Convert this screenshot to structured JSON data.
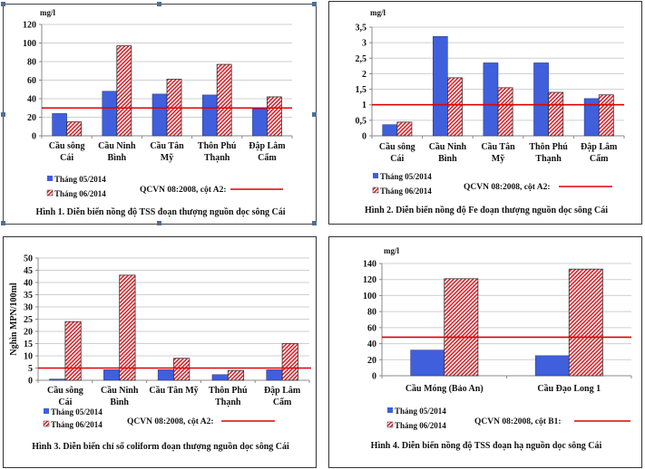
{
  "colors": {
    "series1": "#3f5fdd",
    "series2_stripe": "#d8232a",
    "standard_line": "#e00000",
    "grid": "#cfcfcf"
  },
  "chart_data": [
    {
      "id": "p1",
      "type": "bar",
      "caption": "Hình 1. Diễn biến nồng độ TSS đoạn thượng nguồn dọc sông Cái",
      "ylabel": "mg/l",
      "ylabel_orientation": "horizontal-top",
      "ylim": [
        0,
        120
      ],
      "yticks": [
        "0",
        "20",
        "40",
        "60",
        "80",
        "100",
        "120"
      ],
      "ytick_values": [
        0,
        20,
        40,
        60,
        80,
        100,
        120
      ],
      "categories": [
        [
          "Cầu sông",
          "Cái"
        ],
        [
          "Cầu Ninh",
          "Bình"
        ],
        [
          "Cầu Tân",
          "Mỹ"
        ],
        [
          "Thôn Phú",
          "Thạnh"
        ],
        [
          "Đập Lâm",
          "Cẩm"
        ]
      ],
      "series": [
        {
          "name": "Tháng 05/2014",
          "values": [
            24,
            48,
            45,
            44,
            29
          ]
        },
        {
          "name": "Tháng 06/2014",
          "values": [
            15,
            97,
            61,
            77,
            42
          ]
        }
      ],
      "standard": {
        "label": "QCVN 08:2008, cột A2:",
        "value": 30
      },
      "grid": true,
      "legend": "bottom"
    },
    {
      "id": "p2",
      "type": "bar",
      "caption": "Hình 2. Diễn biến nồng độ Fe đoạn thượng nguồn dọc sông Cái",
      "ylabel": "mg/l",
      "ylabel_orientation": "horizontal-top",
      "ylim": [
        0,
        3.5
      ],
      "yticks": [
        "0",
        "0,5",
        "1",
        "1,5",
        "2",
        "2,5",
        "3",
        "3,5"
      ],
      "ytick_values": [
        0,
        0.5,
        1,
        1.5,
        2,
        2.5,
        3,
        3.5
      ],
      "categories": [
        [
          "Cầu sông",
          "Cái"
        ],
        [
          "Cầu Ninh",
          "Bình"
        ],
        [
          "Cầu Tân",
          "Mỹ"
        ],
        [
          "Thôn Phú",
          "Thạnh"
        ],
        [
          "Đập Lâm",
          "Cẩm"
        ]
      ],
      "series": [
        {
          "name": "Tháng 05/2014",
          "values": [
            0.36,
            3.2,
            2.35,
            2.35,
            1.2
          ]
        },
        {
          "name": "Tháng 06/2014",
          "values": [
            0.44,
            1.87,
            1.55,
            1.4,
            1.32
          ]
        }
      ],
      "standard": {
        "label": "QCVN 08:2008, cột A2:",
        "value": 1
      },
      "grid": true,
      "legend": "bottom"
    },
    {
      "id": "p3",
      "type": "bar",
      "caption": "Hình 3. Diễn biến chỉ số coliform đoạn thượng nguồn dọc sông Cái",
      "ylabel": "Nghìn MPN/100ml",
      "ylabel_orientation": "vertical",
      "ylim": [
        0,
        50
      ],
      "yticks": [
        "0",
        "5",
        "10",
        "15",
        "20",
        "25",
        "30",
        "35",
        "40",
        "45",
        "50"
      ],
      "ytick_values": [
        0,
        5,
        10,
        15,
        20,
        25,
        30,
        35,
        40,
        45,
        50
      ],
      "categories": [
        [
          "Cầu sông",
          "Cái"
        ],
        [
          "Cầu Ninh",
          "Bình"
        ],
        [
          "Cầu Tân Mỹ"
        ],
        [
          "Thôn Phú",
          "Thạnh"
        ],
        [
          "Đập Lâm",
          "Cẩm"
        ]
      ],
      "series": [
        {
          "name": "Tháng 05/2014",
          "values": [
            0.5,
            4.3,
            4.3,
            2.3,
            4.3
          ]
        },
        {
          "name": "Tháng 06/2014",
          "values": [
            24,
            43,
            9,
            4,
            15
          ]
        }
      ],
      "standard": {
        "label": "QCVN 08:2008, cột A2:",
        "value": 5
      },
      "grid": true,
      "legend": "bottom"
    },
    {
      "id": "p4",
      "type": "bar",
      "caption": "Hình 4. Diễn biến nồng độ TSS đoạn hạ nguồn dọc sông Cái",
      "ylabel": "mg/l",
      "ylabel_orientation": "horizontal-top",
      "ylim": [
        0,
        140
      ],
      "yticks": [
        "0",
        "20",
        "40",
        "60",
        "80",
        "100",
        "120",
        "140"
      ],
      "ytick_values": [
        0,
        20,
        40,
        60,
        80,
        100,
        120,
        140
      ],
      "categories": [
        [
          "Cầu Móng (Bảo An)"
        ],
        [
          "Cầu Đạo Long 1"
        ]
      ],
      "series": [
        {
          "name": "Tháng 05/2014",
          "values": [
            32,
            25
          ]
        },
        {
          "name": "Tháng 06/2014",
          "values": [
            121,
            133
          ]
        }
      ],
      "standard": {
        "label": "QCVN 08:2008, cột B1:",
        "value": 48
      },
      "grid": true,
      "legend": "bottom"
    }
  ]
}
